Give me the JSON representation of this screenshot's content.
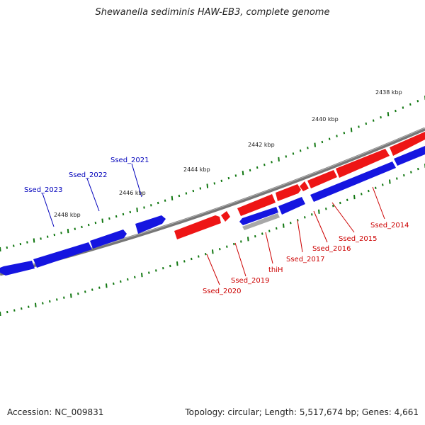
{
  "header": {
    "title": "Shewanella sediminis HAW-EB3, complete genome"
  },
  "footer": {
    "accession": "Accession: NC_009831",
    "topology": "Topology: circular; Length: 5,517,674 bp; Genes: 4,661"
  },
  "colors": {
    "forward_gene": "#ee1111",
    "reverse_gene": "#1111ee",
    "other_feature": "#aaaaaa",
    "backbone": "#777777",
    "tick": "#117711",
    "label_forward": "#cc0000",
    "label_reverse": "#0000bb"
  },
  "scale_labels": [
    "2438 kbp",
    "2440 kbp",
    "2442 kbp",
    "2444 kbp",
    "2446 kbp",
    "2448 kbp"
  ],
  "genes_reverse_labels": [
    "Ssed_2021",
    "Ssed_2022",
    "Ssed_2023"
  ],
  "genes_forward_labels": [
    "Ssed_2014",
    "Ssed_2015",
    "Ssed_2016",
    "Ssed_2017",
    "thiH",
    "Ssed_2019",
    "Ssed_2020"
  ]
}
